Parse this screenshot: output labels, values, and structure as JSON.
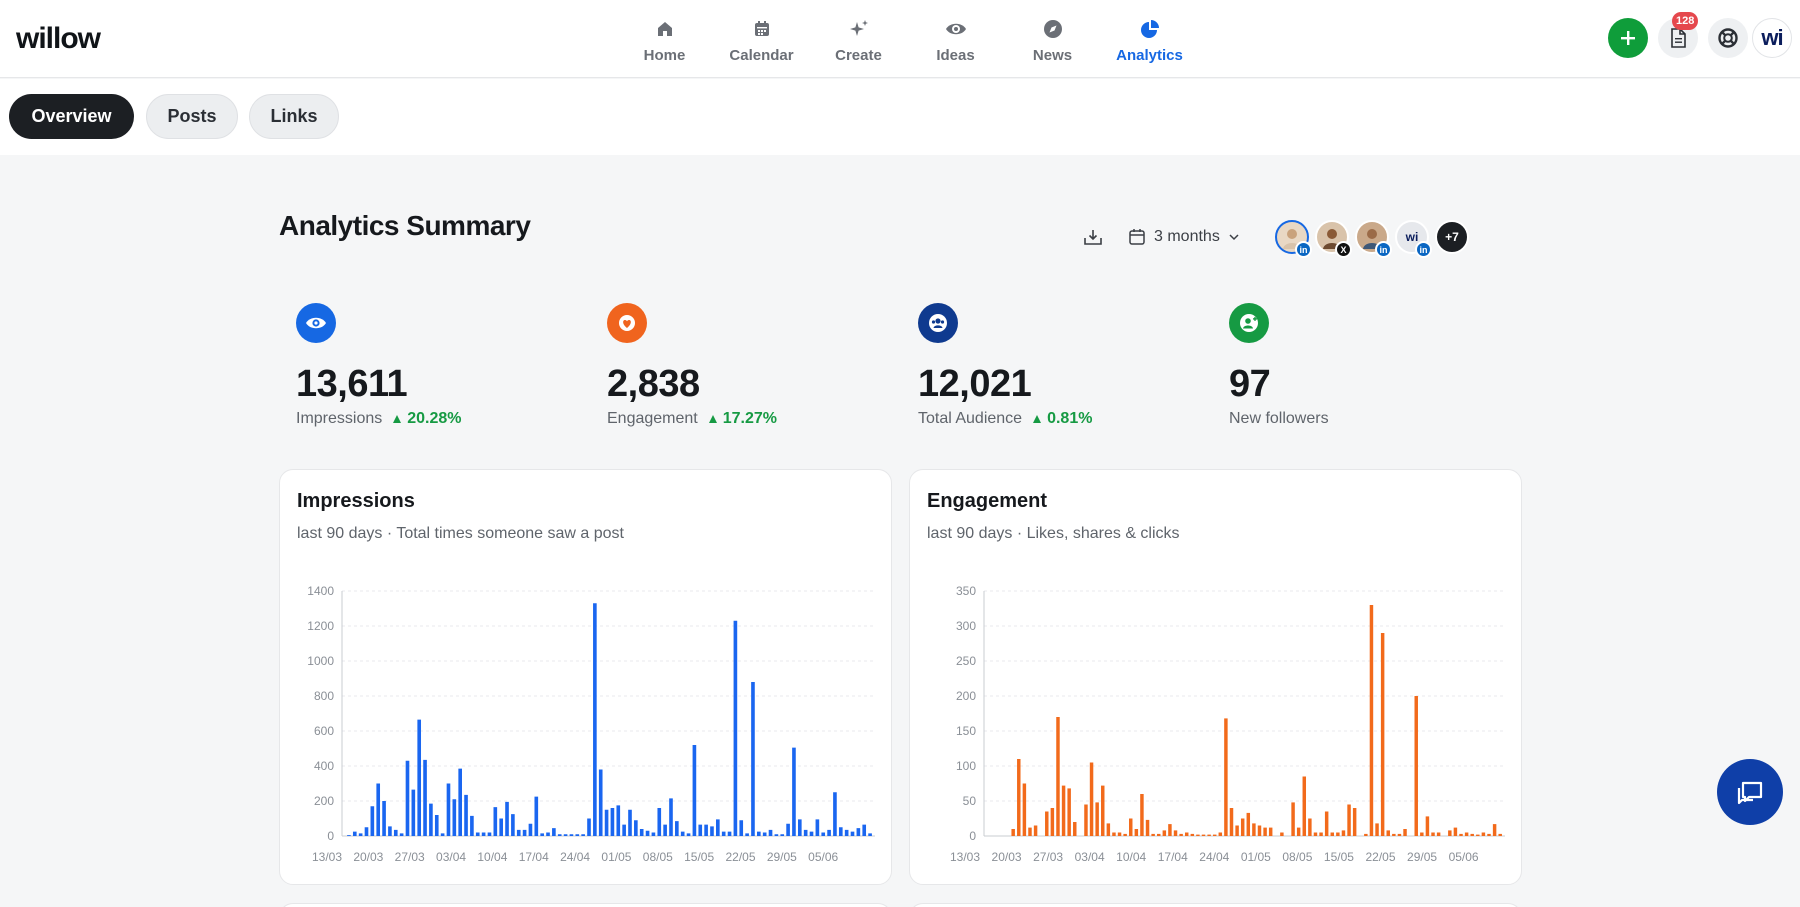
{
  "app": {
    "logo": "willow"
  },
  "nav": [
    {
      "label": "Home",
      "icon": "home-icon"
    },
    {
      "label": "Calendar",
      "icon": "calendar-icon"
    },
    {
      "label": "Create",
      "icon": "sparkle-icon"
    },
    {
      "label": "Ideas",
      "icon": "eye-icon"
    },
    {
      "label": "News",
      "icon": "compass-icon"
    },
    {
      "label": "Analytics",
      "icon": "pie-chart-icon",
      "active": true
    }
  ],
  "top_right": {
    "docs_badge": "128",
    "avatar_text": "wi"
  },
  "tabs": [
    {
      "label": "Overview",
      "active": true
    },
    {
      "label": "Posts"
    },
    {
      "label": "Links"
    }
  ],
  "summary": {
    "title": "Analytics Summary",
    "range": "3 months",
    "accounts": [
      {
        "network": "in",
        "label": ""
      },
      {
        "network": "X",
        "label": ""
      },
      {
        "network": "in",
        "label": ""
      },
      {
        "network": "in",
        "label": "wi"
      }
    ],
    "more_accounts": "+7"
  },
  "stats": [
    {
      "value": "13,611",
      "label": "Impressions",
      "delta": "20.28%",
      "color": "#1668e3",
      "icon": "eye-icon"
    },
    {
      "value": "2,838",
      "label": "Engagement",
      "delta": "17.27%",
      "color": "#f0641e",
      "icon": "heart-icon"
    },
    {
      "value": "12,021",
      "label": "Total Audience",
      "delta": "0.81%",
      "color": "#0f3a8f",
      "icon": "users-icon"
    },
    {
      "value": "97",
      "label": "New followers",
      "delta": "",
      "color": "#169a43",
      "icon": "user-plus-icon"
    }
  ],
  "chart_data": [
    {
      "type": "bar",
      "title": "Impressions",
      "subtitle": "last 90 days · Total times someone saw a post",
      "color": "#1a66f0",
      "ylim": [
        0,
        1400
      ],
      "yticks": [
        0,
        200,
        400,
        600,
        800,
        1000,
        1200,
        1400
      ],
      "xtick_labels": [
        "13/03",
        "20/03",
        "27/03",
        "03/04",
        "10/04",
        "17/04",
        "24/04",
        "01/05",
        "08/05",
        "15/05",
        "22/05",
        "29/05",
        "05/06"
      ],
      "grid": true,
      "values": [
        5,
        25,
        15,
        50,
        170,
        300,
        200,
        55,
        35,
        15,
        430,
        265,
        665,
        435,
        185,
        120,
        15,
        300,
        210,
        385,
        235,
        115,
        20,
        20,
        20,
        165,
        100,
        195,
        125,
        35,
        35,
        70,
        225,
        15,
        20,
        45,
        10,
        10,
        10,
        10,
        10,
        100,
        1330,
        380,
        150,
        160,
        175,
        65,
        150,
        90,
        40,
        30,
        20,
        160,
        65,
        215,
        85,
        25,
        15,
        520,
        65,
        65,
        55,
        95,
        25,
        25,
        1230,
        90,
        15,
        880,
        25,
        20,
        35,
        10,
        10,
        70,
        505,
        95,
        35,
        25,
        95,
        20,
        35,
        250,
        50,
        35,
        25,
        45,
        65,
        15
      ]
    },
    {
      "type": "bar",
      "title": "Engagement",
      "subtitle": "last 90 days · Likes, shares & clicks",
      "color": "#f26a1b",
      "ylim": [
        0,
        350
      ],
      "yticks": [
        0,
        50,
        100,
        150,
        200,
        250,
        300,
        350
      ],
      "xtick_labels": [
        "13/03",
        "20/03",
        "27/03",
        "03/04",
        "10/04",
        "17/04",
        "24/04",
        "01/05",
        "08/05",
        "15/05",
        "22/05",
        "29/05",
        "05/06"
      ],
      "grid": true,
      "values": [
        0,
        0,
        0,
        0,
        10,
        110,
        75,
        12,
        15,
        0,
        35,
        40,
        170,
        72,
        68,
        20,
        0,
        45,
        105,
        48,
        72,
        18,
        5,
        5,
        3,
        25,
        10,
        60,
        23,
        3,
        3,
        8,
        17,
        8,
        3,
        5,
        3,
        2,
        2,
        2,
        2,
        5,
        168,
        40,
        15,
        25,
        33,
        18,
        15,
        12,
        12,
        0,
        5,
        0,
        48,
        12,
        85,
        25,
        5,
        5,
        35,
        5,
        5,
        8,
        45,
        40,
        0,
        3,
        330,
        18,
        290,
        8,
        3,
        3,
        10,
        0,
        200,
        5,
        28,
        5,
        5,
        0,
        8,
        12,
        3,
        5,
        3,
        2,
        5,
        3,
        17,
        3
      ]
    }
  ]
}
